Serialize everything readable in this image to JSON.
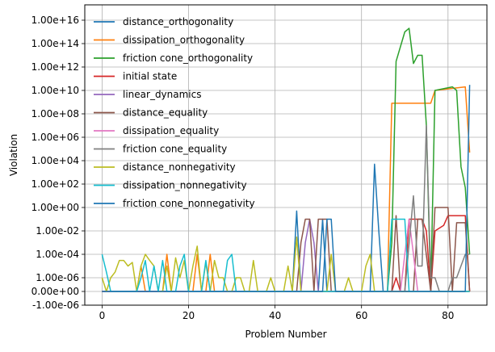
{
  "chart_data": {
    "type": "line",
    "xlabel": "Problem Number",
    "ylabel": "Violation",
    "xlim": [
      -4,
      89
    ],
    "x_ticks": [
      0,
      20,
      40,
      60,
      80
    ],
    "y_scale": "symlog",
    "y_ticks": [
      {
        "label": "-1.00e-06",
        "value": -1e-06
      },
      {
        "label": "0.00e+00",
        "value": 0
      },
      {
        "label": "1.00e-06",
        "value": 1e-06
      },
      {
        "label": "1.00e-04",
        "value": 0.0001
      },
      {
        "label": "1.00e-02",
        "value": 0.01
      },
      {
        "label": "1.00e+00",
        "value": 1
      },
      {
        "label": "1.00e+02",
        "value": 100.0
      },
      {
        "label": "1.00e+04",
        "value": 10000.0
      },
      {
        "label": "1.00e+06",
        "value": 1000000.0
      },
      {
        "label": "1.00e+08",
        "value": 100000000.0
      },
      {
        "label": "1.00e+10",
        "value": 10000000000.0
      },
      {
        "label": "1.00e+12",
        "value": 1000000000000.0
      },
      {
        "label": "1.00e+14",
        "value": 100000000000000.0
      },
      {
        "label": "1.00e+16",
        "value": 1e+16
      }
    ],
    "grid": true,
    "legend": "upper-left",
    "series": [
      {
        "name": "distance_orthogonality",
        "color": "#1f77b4",
        "points": [
          [
            0,
            0
          ],
          [
            44,
            0
          ],
          [
            45,
            0.5
          ],
          [
            46,
            0
          ],
          [
            50,
            0
          ],
          [
            51,
            0.1
          ],
          [
            52,
            0
          ],
          [
            62,
            0
          ],
          [
            63,
            5000.0
          ],
          [
            64,
            0.01
          ],
          [
            65,
            0
          ],
          [
            85,
            0
          ]
        ]
      },
      {
        "name": "dissipation_orthogonality",
        "color": "#ff7f0e",
        "points": [
          [
            0,
            0
          ],
          [
            8,
            0
          ],
          [
            9,
            1e-05
          ],
          [
            10,
            0
          ],
          [
            14,
            0
          ],
          [
            15,
            0.0001
          ],
          [
            16,
            0
          ],
          [
            21,
            0
          ],
          [
            22,
            0.0001
          ],
          [
            23,
            0
          ],
          [
            24,
            0
          ],
          [
            25,
            0.0001
          ],
          [
            26,
            0
          ],
          [
            66,
            0
          ],
          [
            67,
            800000000.0
          ],
          [
            76,
            800000000.0
          ],
          [
            77,
            10000000000.0
          ],
          [
            84,
            20000000000.0
          ],
          [
            85,
            50000.0
          ]
        ]
      },
      {
        "name": "friction cone_orthogonality",
        "color": "#2ca02c",
        "points": [
          [
            0,
            0
          ],
          [
            66,
            0
          ],
          [
            67,
            0.001
          ],
          [
            68,
            3000000000000.0
          ],
          [
            70,
            1000000000000000.0
          ],
          [
            71,
            2000000000000000.0
          ],
          [
            72,
            2000000000000.0
          ],
          [
            73,
            10000000000000.0
          ],
          [
            74,
            10000000000000.0
          ],
          [
            75,
            10000000.0
          ],
          [
            76,
            0
          ],
          [
            77,
            10000000000.0
          ],
          [
            81,
            20000000000.0
          ],
          [
            82,
            10000000000.0
          ],
          [
            83,
            3000.0
          ],
          [
            84,
            50.0
          ],
          [
            85,
            0.0001
          ]
        ]
      },
      {
        "name": "initial state",
        "color": "#d62728",
        "points": [
          [
            0,
            0
          ],
          [
            67,
            0
          ],
          [
            68,
            1e-06
          ],
          [
            69,
            0
          ],
          [
            70,
            0
          ],
          [
            71,
            0.1
          ],
          [
            74,
            0.1
          ],
          [
            75,
            0.01
          ],
          [
            76,
            0
          ],
          [
            77,
            0.01
          ],
          [
            79,
            0.03
          ],
          [
            80,
            0.2
          ],
          [
            84,
            0.2
          ],
          [
            85,
            0
          ]
        ]
      },
      {
        "name": "linear_dynamics",
        "color": "#9467bd",
        "points": [
          [
            0,
            0
          ],
          [
            46,
            0
          ],
          [
            47,
            0.001
          ],
          [
            48,
            0.1
          ],
          [
            49,
            0.001
          ],
          [
            50,
            0
          ],
          [
            85,
            0
          ]
        ]
      },
      {
        "name": "distance_equality",
        "color": "#8c564b",
        "points": [
          [
            0,
            0
          ],
          [
            45,
            0
          ],
          [
            46,
            0.001
          ],
          [
            47,
            0.1
          ],
          [
            48,
            0.1
          ],
          [
            49,
            0
          ],
          [
            50,
            0.1
          ],
          [
            52,
            0.1
          ],
          [
            53,
            0
          ],
          [
            67,
            0
          ],
          [
            68,
            0.2
          ],
          [
            69,
            0
          ],
          [
            72,
            0
          ],
          [
            73,
            0.1
          ],
          [
            74,
            0.1
          ],
          [
            76,
            0
          ],
          [
            77,
            1
          ],
          [
            80,
            1
          ],
          [
            81,
            0
          ],
          [
            82,
            0.05
          ],
          [
            84,
            0.05
          ],
          [
            85,
            0
          ]
        ]
      },
      {
        "name": "dissipation_equality",
        "color": "#e377c2",
        "points": [
          [
            0,
            0
          ],
          [
            69,
            0
          ],
          [
            70,
            0.0001
          ],
          [
            71,
            0.1
          ],
          [
            72,
            0.0001
          ],
          [
            73,
            0
          ],
          [
            85,
            0
          ]
        ]
      },
      {
        "name": "friction cone_equality",
        "color": "#7f7f7f",
        "points": [
          [
            0,
            0
          ],
          [
            70,
            0
          ],
          [
            72,
            10
          ],
          [
            73,
            1e-05
          ],
          [
            74,
            1e-05
          ],
          [
            75,
            10000000.0
          ],
          [
            76,
            1e-06
          ],
          [
            77,
            1e-06
          ],
          [
            78,
            0
          ],
          [
            80,
            0
          ],
          [
            81,
            1e-06
          ],
          [
            82,
            1e-06
          ],
          [
            84,
            0.0001
          ],
          [
            85,
            0.0001
          ]
        ]
      },
      {
        "name": "distance_nonnegativity",
        "color": "#bcbd22",
        "points": [
          [
            0,
            1e-06
          ],
          [
            1,
            0
          ],
          [
            2,
            1e-06
          ],
          [
            3,
            3e-06
          ],
          [
            4,
            3e-05
          ],
          [
            5,
            3e-05
          ],
          [
            6,
            1e-05
          ],
          [
            7,
            2e-05
          ],
          [
            8,
            0
          ],
          [
            9,
            1e-05
          ],
          [
            10,
            0.0001
          ],
          [
            11,
            3e-05
          ],
          [
            12,
            1e-05
          ],
          [
            13,
            0
          ],
          [
            14,
            0
          ],
          [
            15,
            1e-05
          ],
          [
            16,
            0
          ],
          [
            17,
            5e-05
          ],
          [
            18,
            1e-06
          ],
          [
            19,
            3e-05
          ],
          [
            20,
            0
          ],
          [
            21,
            1e-05
          ],
          [
            22,
            0.0005
          ],
          [
            23,
            0
          ],
          [
            24,
            2e-05
          ],
          [
            25,
            0
          ],
          [
            26,
            3e-05
          ],
          [
            27,
            1e-06
          ],
          [
            28,
            1e-06
          ],
          [
            29,
            0
          ],
          [
            30,
            0
          ],
          [
            31,
            1e-06
          ],
          [
            32,
            1e-06
          ],
          [
            33,
            0
          ],
          [
            34,
            0
          ],
          [
            35,
            3e-05
          ],
          [
            36,
            0
          ],
          [
            37,
            0
          ],
          [
            38,
            0
          ],
          [
            39,
            1e-06
          ],
          [
            40,
            0
          ],
          [
            41,
            0
          ],
          [
            42,
            0
          ],
          [
            43,
            1e-05
          ],
          [
            44,
            0
          ],
          [
            45,
            0.003
          ],
          [
            46,
            0
          ],
          [
            52,
            0
          ],
          [
            53,
            0.0001
          ],
          [
            54,
            0
          ],
          [
            56,
            0
          ],
          [
            57,
            1e-06
          ],
          [
            58,
            0
          ],
          [
            60,
            0
          ],
          [
            61,
            1e-05
          ],
          [
            62,
            0.0001
          ],
          [
            63,
            0
          ],
          [
            85,
            0
          ]
        ]
      },
      {
        "name": "dissipation_nonnegativity",
        "color": "#17becf",
        "points": [
          [
            0,
            0.0001
          ],
          [
            1,
            3e-06
          ],
          [
            2,
            0
          ],
          [
            8,
            0
          ],
          [
            9,
            1e-06
          ],
          [
            10,
            3e-05
          ],
          [
            11,
            0
          ],
          [
            12,
            1e-05
          ],
          [
            13,
            0
          ],
          [
            14,
            3e-05
          ],
          [
            15,
            0
          ],
          [
            17,
            0
          ],
          [
            18,
            1e-05
          ],
          [
            19,
            0.0001
          ],
          [
            20,
            0
          ],
          [
            21,
            0
          ],
          [
            22,
            0
          ],
          [
            23,
            0
          ],
          [
            24,
            3e-05
          ],
          [
            25,
            0
          ],
          [
            28,
            0
          ],
          [
            29,
            3e-05
          ],
          [
            30,
            0.0001
          ],
          [
            31,
            0
          ],
          [
            66,
            0
          ],
          [
            67,
            0.1
          ],
          [
            70,
            0.1
          ],
          [
            71,
            0
          ],
          [
            85,
            0
          ]
        ]
      },
      {
        "name": "friction cone_nonnegativity",
        "color": "#1f77b4",
        "points": [
          [
            0,
            0
          ],
          [
            51,
            0
          ],
          [
            52,
            0.1
          ],
          [
            53,
            0.1
          ],
          [
            54,
            0
          ],
          [
            84,
            0
          ],
          [
            85,
            30000000000.0
          ]
        ]
      }
    ]
  }
}
